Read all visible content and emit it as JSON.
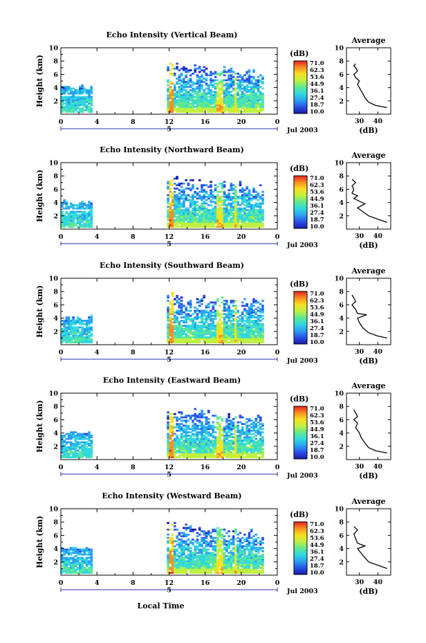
{
  "chart_data": {
    "type": "heatmap",
    "rows": [
      {
        "title": "Echo Intensity (Vertical Beam)",
        "avg_profile": [
          [
            45,
            1
          ],
          [
            39,
            1.3
          ],
          [
            35,
            1.8
          ],
          [
            33,
            2.5
          ],
          [
            31,
            3.5
          ],
          [
            29,
            4.5
          ],
          [
            30,
            5
          ],
          [
            28,
            5.5
          ],
          [
            27,
            6
          ],
          [
            29,
            6.5
          ],
          [
            28,
            7
          ],
          [
            27,
            7.3
          ],
          [
            28,
            7.6
          ]
        ]
      },
      {
        "title": "Echo Intensity (Northward Beam)",
        "avg_profile": [
          [
            45,
            1
          ],
          [
            40,
            1.5
          ],
          [
            35,
            2
          ],
          [
            32,
            2.6
          ],
          [
            29,
            3.2
          ],
          [
            33,
            3.8
          ],
          [
            30,
            4.2
          ],
          [
            27,
            4.6
          ],
          [
            29,
            5
          ],
          [
            26,
            5.4
          ],
          [
            27,
            6
          ],
          [
            26,
            6.5
          ],
          [
            28,
            7
          ],
          [
            26,
            7.5
          ]
        ]
      },
      {
        "title": "Echo Intensity (Southward Beam)",
        "avg_profile": [
          [
            45,
            1
          ],
          [
            40,
            1.3
          ],
          [
            35,
            1.8
          ],
          [
            32,
            2.5
          ],
          [
            30,
            3.3
          ],
          [
            29,
            4
          ],
          [
            34,
            4.5
          ],
          [
            29,
            4.7
          ],
          [
            28,
            5.3
          ],
          [
            26,
            6
          ],
          [
            28,
            6.5
          ],
          [
            27,
            7
          ],
          [
            26,
            7.5
          ]
        ]
      },
      {
        "title": "Echo Intensity (Eastward Beam)",
        "avg_profile": [
          [
            45,
            1
          ],
          [
            39,
            1.3
          ],
          [
            35,
            1.8
          ],
          [
            33,
            2.5
          ],
          [
            31,
            3.3
          ],
          [
            30,
            4
          ],
          [
            28,
            4.8
          ],
          [
            29,
            5.5
          ],
          [
            27,
            6
          ],
          [
            29,
            6.5
          ],
          [
            28,
            7
          ],
          [
            27,
            7.5
          ]
        ]
      },
      {
        "title": "Echo Intensity (Westward Beam)",
        "avg_profile": [
          [
            45,
            1
          ],
          [
            40,
            1.5
          ],
          [
            35,
            2
          ],
          [
            33,
            2.6
          ],
          [
            31,
            3.3
          ],
          [
            29,
            4
          ],
          [
            33,
            4.4
          ],
          [
            29,
            4.8
          ],
          [
            28,
            5.5
          ],
          [
            27,
            6.2
          ],
          [
            29,
            6.8
          ],
          [
            27,
            7.3
          ]
        ]
      }
    ],
    "ylabel": "Height (km)",
    "ylim": [
      0,
      10
    ],
    "yticks": [
      "2",
      "4",
      "6",
      "8",
      "10"
    ],
    "xticks": [
      "0",
      "4",
      "8",
      "12",
      "16",
      "20",
      "0"
    ],
    "xlim": [
      0,
      24
    ],
    "day_marker": "5",
    "date_label": "Jul 2003",
    "xlabel": "Local Time",
    "colorbar": {
      "unit_label": "(dB)",
      "labels": [
        "71.0",
        "62.3",
        "53.6",
        "44.9",
        "36.1",
        "27.4",
        "18.7",
        "10.0"
      ],
      "range": [
        10,
        71
      ],
      "colors": [
        "#1a1aa8",
        "#2a50e8",
        "#2aa0f0",
        "#30d8e0",
        "#60e890",
        "#c0f040",
        "#f8e020",
        "#f89020",
        "#e82020"
      ]
    },
    "average": {
      "title": "Average",
      "xlabel": "(dB)",
      "xticks": [
        "30",
        "40"
      ],
      "xlim": [
        23,
        47
      ],
      "yticks": [
        "2",
        "4",
        "6",
        "8",
        "10"
      ],
      "ylim": [
        0,
        10
      ]
    }
  }
}
